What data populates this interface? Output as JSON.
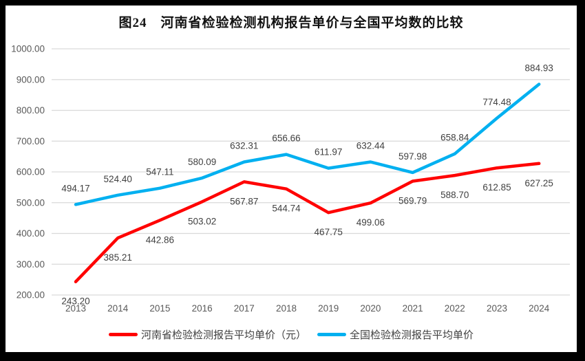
{
  "title": "图24　河南省检验检测机构报告单价与全国平均数的比较",
  "colors": {
    "frame_border": "#000000",
    "background": "#ffffff",
    "gridline": "#d9d9d9",
    "tick_text": "#595959",
    "data_label_text": "#404040",
    "henan_series": "#ff0000",
    "national_series": "#00b0f0"
  },
  "chart_data": {
    "type": "line",
    "title": "图24　河南省检验检测机构报告单价与全国平均数的比较",
    "categories": [
      "2013",
      "2014",
      "2015",
      "2016",
      "2017",
      "2018",
      "2019",
      "2020",
      "2021",
      "2022",
      "2023",
      "2024"
    ],
    "series": [
      {
        "name": "河南省检验检测报告平均单价（元）",
        "color": "#ff0000",
        "label_position": "below",
        "values": [
          243.2,
          385.21,
          442.86,
          503.02,
          567.87,
          544.74,
          467.75,
          499.06,
          569.79,
          588.7,
          612.85,
          627.25
        ]
      },
      {
        "name": "全国检验检测报告平均单价",
        "color": "#00b0f0",
        "label_position": "above",
        "values": [
          494.17,
          524.4,
          547.11,
          580.09,
          632.31,
          656.66,
          611.97,
          632.44,
          597.98,
          658.84,
          774.48,
          884.93
        ]
      }
    ],
    "ylim": [
      200,
      1000
    ],
    "ytick_step": 100,
    "ytick_format": "0.00",
    "grid": true,
    "legend_position": "bottom",
    "data_labels": true
  },
  "legend": {
    "items": [
      {
        "label": "河南省检验检测报告平均单价（元）",
        "color": "#ff0000"
      },
      {
        "label": "全国检验检测报告平均单价",
        "color": "#00b0f0"
      }
    ]
  }
}
